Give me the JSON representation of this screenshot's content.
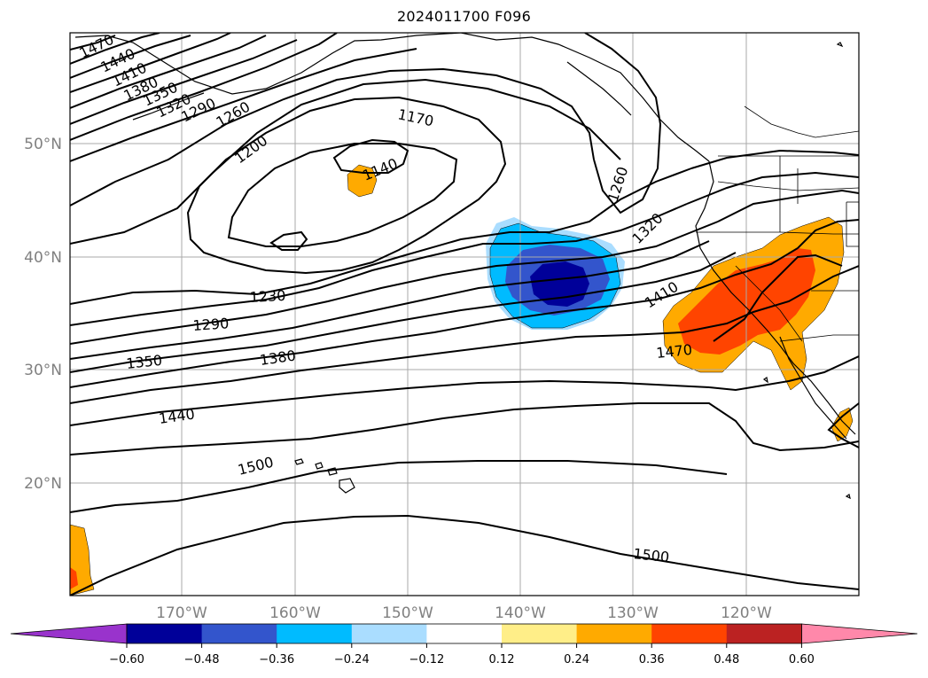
{
  "title": "2024011700 F096",
  "lat_labels": [
    "50°N",
    "40°N",
    "30°N",
    "20°N"
  ],
  "lon_labels": [
    "170°W",
    "160°W",
    "150°W",
    "140°W",
    "130°W",
    "120°W"
  ],
  "contour_labels": [
    "1470",
    "1440",
    "1410",
    "1380",
    "1350",
    "1320",
    "1290",
    "1260",
    "1200",
    "1170",
    "1140",
    "1260",
    "1320",
    "1410",
    "1470",
    "1230",
    "1290",
    "1350",
    "1380",
    "1440",
    "1500",
    "1500"
  ],
  "colorbar": {
    "ticks": [
      "−0.60",
      "−0.48",
      "−0.36",
      "−0.24",
      "−0.12",
      "0.12",
      "0.24",
      "0.36",
      "0.48",
      "0.60"
    ],
    "colors": [
      "#9933cc",
      "#000099",
      "#3355cc",
      "#00bbff",
      "#aaddff",
      "#ffffff",
      "#ffee88",
      "#ffaa00",
      "#ff4400",
      "#bb2222",
      "#ff88aa"
    ]
  },
  "shading_colors": {
    "light_orange": "#ffaa00",
    "red_orange": "#ff4400",
    "light_blue": "#aaddff",
    "cyan": "#00bbff",
    "blue": "#3355cc",
    "navy": "#000099"
  }
}
